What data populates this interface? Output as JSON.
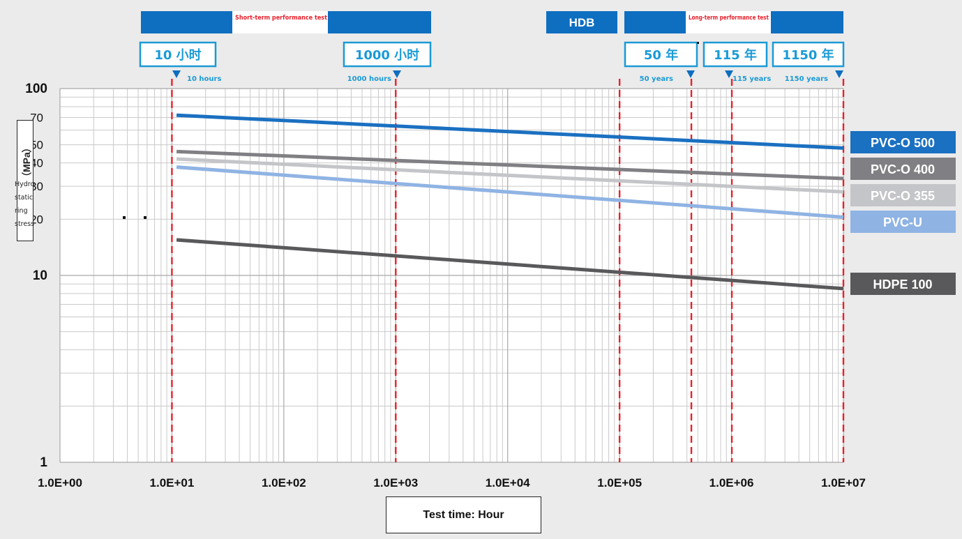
{
  "chart_data": {
    "type": "line",
    "x_scale": "log",
    "y_scale": "log",
    "xlim": [
      1,
      10000000
    ],
    "ylim": [
      1,
      100
    ],
    "x_ticks": [
      "1.0E+00",
      "1.0E+01",
      "1.0E+02",
      "1.0E+03",
      "1.0E+04",
      "1.0E+05",
      "1.0E+06",
      "1.0E+07"
    ],
    "y_ticks": [
      "1",
      "10",
      "20",
      "30",
      "40",
      "50",
      "70",
      "100"
    ],
    "xlabel": "Test time: Hour",
    "ylabel_unit": "（MPa）",
    "ylabel_lines": [
      "Hydro",
      "static",
      "ring",
      "stress"
    ],
    "grid": true,
    "legend_placement": "right",
    "series": [
      {
        "name": "PVC-O 500",
        "color": "#1a70c1",
        "x": [
          11,
          10000000
        ],
        "y": [
          72,
          48
        ]
      },
      {
        "name": "PVC-O 400",
        "color": "#808084",
        "x": [
          11,
          10000000
        ],
        "y": [
          46,
          33
        ]
      },
      {
        "name": "PVC-O 355",
        "color": "#c4c5c8",
        "x": [
          11,
          10000000
        ],
        "y": [
          42,
          28
        ]
      },
      {
        "name": "PVC-U",
        "color": "#8fb3e3",
        "x": [
          11,
          10000000
        ],
        "y": [
          38,
          20.5
        ]
      },
      {
        "name": "HDPE 100",
        "color": "#59595b",
        "x": [
          11,
          10000000
        ],
        "y": [
          15.5,
          8.5
        ]
      }
    ],
    "reference_lines": [
      {
        "x": 10,
        "big_label": "10 小时",
        "small_label": "10 hours"
      },
      {
        "x": 1000,
        "big_label": "1000 小时",
        "small_label": "1000 hours"
      },
      {
        "x": 100000,
        "big_label": "",
        "small_label": ""
      },
      {
        "x": 438000,
        "big_label": "50 年",
        "small_label": "50 years"
      },
      {
        "x": 1007400,
        "big_label": "115 年",
        "small_label": "115 years"
      },
      {
        "x": 10074000,
        "big_label": "1150 年",
        "small_label": "1150 years"
      }
    ],
    "top_bands": {
      "short_term": "Short-term performance test",
      "hdb": "HDB",
      "long_term": "Long-term performance test"
    },
    "colors": {
      "band_blue": "#0e6ec0",
      "ref_line_red": "#e8202b",
      "label_blue": "#1a9ad6",
      "band_text_red": "#e8202b"
    }
  }
}
